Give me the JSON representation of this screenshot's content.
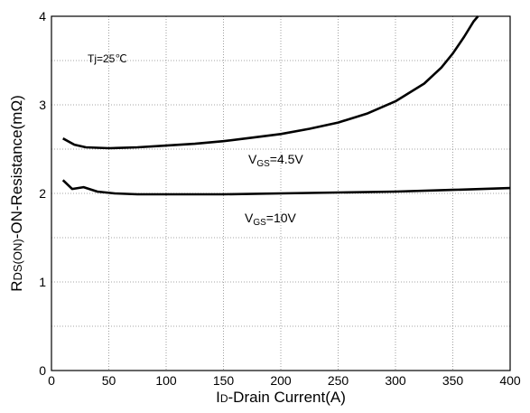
{
  "chart_data": {
    "type": "line",
    "xlabel": {
      "main": "I",
      "sub": "D",
      "rest": "-Drain Current(A)"
    },
    "ylabel": {
      "main": "R",
      "sub": "DS(ON)",
      "rest": "-ON-Resistance(mΩ)"
    },
    "xlim": [
      0,
      400
    ],
    "ylim": [
      0,
      4
    ],
    "x_ticks": [
      "0",
      "50",
      "100",
      "150",
      "200",
      "250",
      "300",
      "350",
      "400"
    ],
    "y_ticks": [
      "0",
      "1",
      "2",
      "3",
      "4"
    ],
    "grid": true,
    "series": [
      {
        "label_main": "V",
        "label_sub": "GS",
        "label_rest": "=4.5V",
        "x": [
          10,
          20,
          30,
          50,
          75,
          100,
          125,
          150,
          175,
          200,
          225,
          250,
          275,
          300,
          325,
          340,
          350,
          360,
          368,
          372
        ],
        "y": [
          2.62,
          2.55,
          2.52,
          2.51,
          2.52,
          2.54,
          2.56,
          2.59,
          2.63,
          2.67,
          2.73,
          2.8,
          2.9,
          3.04,
          3.24,
          3.42,
          3.58,
          3.77,
          3.94,
          4.0
        ]
      },
      {
        "label_main": "V",
        "label_sub": "GS",
        "label_rest": "=10V",
        "x": [
          10,
          18,
          28,
          40,
          55,
          75,
          100,
          150,
          200,
          250,
          300,
          350,
          400
        ],
        "y": [
          2.15,
          2.05,
          2.07,
          2.02,
          2.0,
          1.99,
          1.99,
          1.99,
          2.0,
          2.01,
          2.02,
          2.04,
          2.06
        ]
      }
    ],
    "annotation": "Tj=25℃"
  }
}
